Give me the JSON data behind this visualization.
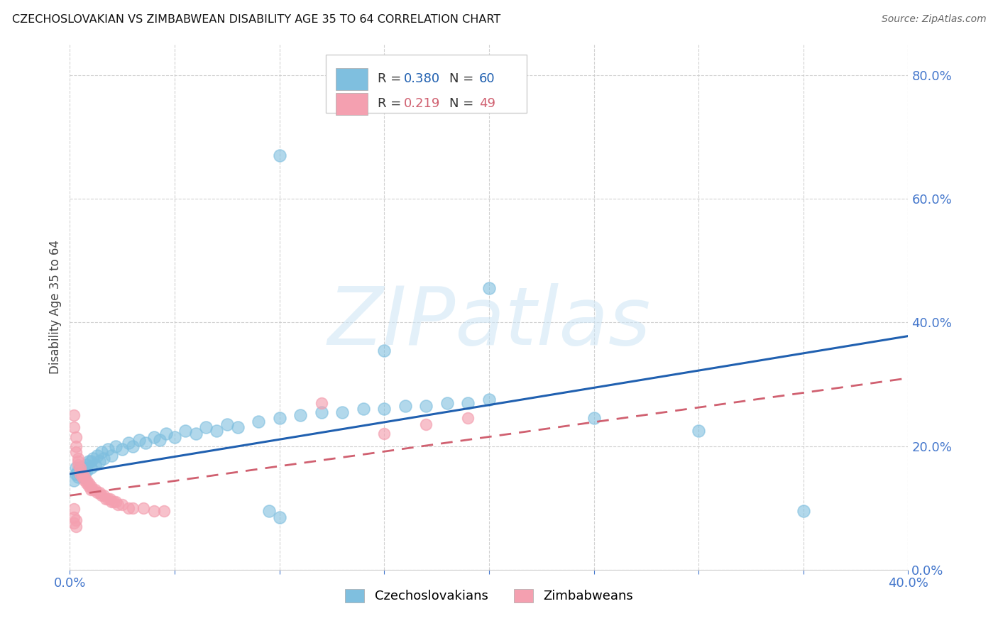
{
  "title": "CZECHOSLOVAKIAN VS ZIMBABWEAN DISABILITY AGE 35 TO 64 CORRELATION CHART",
  "source": "Source: ZipAtlas.com",
  "ylabel": "Disability Age 35 to 64",
  "watermark": "ZIPatlas",
  "background_color": "#ffffff",
  "xlim": [
    0.0,
    0.4
  ],
  "ylim": [
    0.0,
    0.85
  ],
  "xticks_show": [
    0.0,
    0.4
  ],
  "xticks_grid": [
    0.0,
    0.05,
    0.1,
    0.15,
    0.2,
    0.25,
    0.3,
    0.35,
    0.4
  ],
  "yticks": [
    0.0,
    0.2,
    0.4,
    0.6,
    0.8
  ],
  "czech_color": "#7fbfdf",
  "zimb_color": "#f4a0b0",
  "czech_line_color": "#2060b0",
  "zimb_line_color": "#d06070",
  "tick_color": "#4477cc",
  "R_czech": 0.38,
  "N_czech": 60,
  "R_zimb": 0.219,
  "N_zimb": 49,
  "czech_points": [
    [
      0.002,
      0.145
    ],
    [
      0.003,
      0.155
    ],
    [
      0.003,
      0.165
    ],
    [
      0.004,
      0.15
    ],
    [
      0.004,
      0.16
    ],
    [
      0.005,
      0.155
    ],
    [
      0.005,
      0.165
    ],
    [
      0.006,
      0.15
    ],
    [
      0.006,
      0.16
    ],
    [
      0.007,
      0.165
    ],
    [
      0.007,
      0.155
    ],
    [
      0.008,
      0.17
    ],
    [
      0.008,
      0.16
    ],
    [
      0.009,
      0.175
    ],
    [
      0.01,
      0.165
    ],
    [
      0.01,
      0.175
    ],
    [
      0.011,
      0.18
    ],
    [
      0.012,
      0.17
    ],
    [
      0.013,
      0.185
    ],
    [
      0.014,
      0.175
    ],
    [
      0.015,
      0.19
    ],
    [
      0.016,
      0.18
    ],
    [
      0.018,
      0.195
    ],
    [
      0.02,
      0.185
    ],
    [
      0.022,
      0.2
    ],
    [
      0.025,
      0.195
    ],
    [
      0.028,
      0.205
    ],
    [
      0.03,
      0.2
    ],
    [
      0.033,
      0.21
    ],
    [
      0.036,
      0.205
    ],
    [
      0.04,
      0.215
    ],
    [
      0.043,
      0.21
    ],
    [
      0.046,
      0.22
    ],
    [
      0.05,
      0.215
    ],
    [
      0.055,
      0.225
    ],
    [
      0.06,
      0.22
    ],
    [
      0.065,
      0.23
    ],
    [
      0.07,
      0.225
    ],
    [
      0.075,
      0.235
    ],
    [
      0.08,
      0.23
    ],
    [
      0.09,
      0.24
    ],
    [
      0.1,
      0.245
    ],
    [
      0.11,
      0.25
    ],
    [
      0.12,
      0.255
    ],
    [
      0.13,
      0.255
    ],
    [
      0.14,
      0.26
    ],
    [
      0.15,
      0.26
    ],
    [
      0.16,
      0.265
    ],
    [
      0.17,
      0.265
    ],
    [
      0.18,
      0.27
    ],
    [
      0.19,
      0.27
    ],
    [
      0.2,
      0.275
    ],
    [
      0.1,
      0.67
    ],
    [
      0.095,
      0.095
    ],
    [
      0.1,
      0.085
    ],
    [
      0.15,
      0.355
    ],
    [
      0.2,
      0.455
    ],
    [
      0.25,
      0.245
    ],
    [
      0.3,
      0.225
    ],
    [
      0.35,
      0.095
    ]
  ],
  "zimb_points": [
    [
      0.002,
      0.25
    ],
    [
      0.002,
      0.23
    ],
    [
      0.003,
      0.215
    ],
    [
      0.003,
      0.2
    ],
    [
      0.003,
      0.19
    ],
    [
      0.004,
      0.18
    ],
    [
      0.004,
      0.175
    ],
    [
      0.004,
      0.17
    ],
    [
      0.005,
      0.165
    ],
    [
      0.005,
      0.16
    ],
    [
      0.005,
      0.155
    ],
    [
      0.006,
      0.155
    ],
    [
      0.006,
      0.15
    ],
    [
      0.007,
      0.15
    ],
    [
      0.007,
      0.145
    ],
    [
      0.008,
      0.145
    ],
    [
      0.008,
      0.14
    ],
    [
      0.009,
      0.14
    ],
    [
      0.009,
      0.135
    ],
    [
      0.01,
      0.135
    ],
    [
      0.01,
      0.13
    ],
    [
      0.011,
      0.13
    ],
    [
      0.012,
      0.13
    ],
    [
      0.013,
      0.125
    ],
    [
      0.014,
      0.125
    ],
    [
      0.015,
      0.12
    ],
    [
      0.016,
      0.12
    ],
    [
      0.017,
      0.115
    ],
    [
      0.018,
      0.115
    ],
    [
      0.019,
      0.115
    ],
    [
      0.02,
      0.11
    ],
    [
      0.021,
      0.11
    ],
    [
      0.022,
      0.11
    ],
    [
      0.023,
      0.105
    ],
    [
      0.025,
      0.105
    ],
    [
      0.028,
      0.1
    ],
    [
      0.03,
      0.1
    ],
    [
      0.035,
      0.1
    ],
    [
      0.04,
      0.095
    ],
    [
      0.045,
      0.095
    ],
    [
      0.002,
      0.098
    ],
    [
      0.002,
      0.085
    ],
    [
      0.002,
      0.075
    ],
    [
      0.003,
      0.08
    ],
    [
      0.003,
      0.07
    ],
    [
      0.15,
      0.22
    ],
    [
      0.17,
      0.235
    ],
    [
      0.19,
      0.245
    ],
    [
      0.12,
      0.27
    ]
  ]
}
